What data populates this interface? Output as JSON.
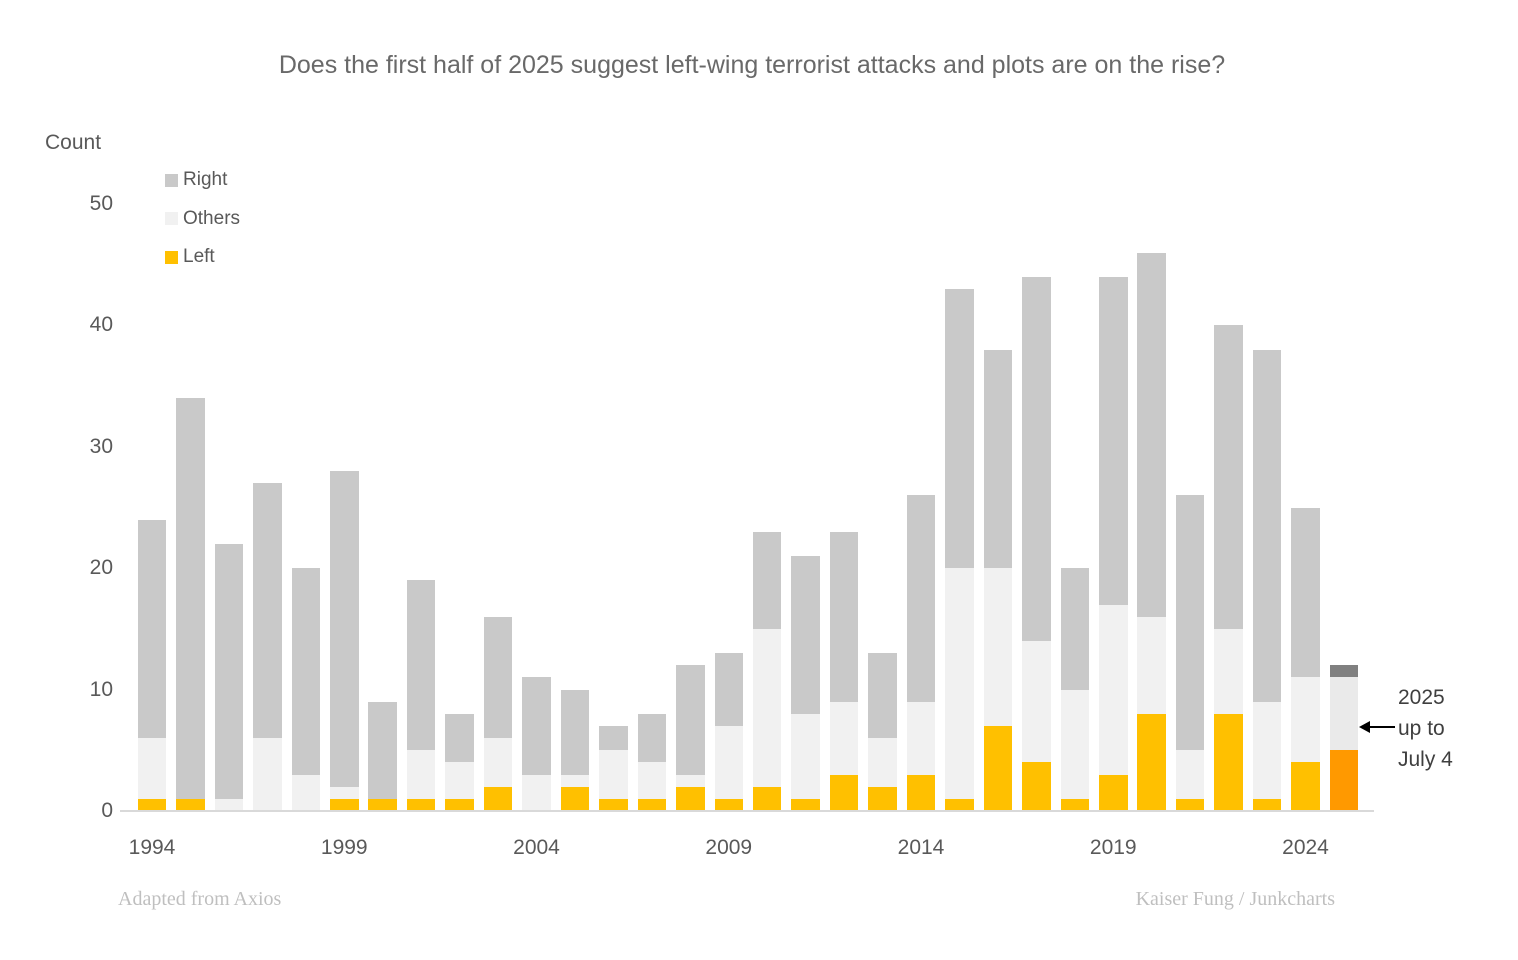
{
  "title": "Does the first half of 2025 suggest left-wing terrorist attacks and plots are on the rise?",
  "footer": {
    "left": "Adapted from Axios",
    "right": "Kaiser Fung / Junkcharts"
  },
  "annotation": {
    "lines": [
      "2025",
      "up to",
      "July 4"
    ],
    "points_to_year": 2025
  },
  "chart_data": {
    "type": "bar",
    "subtype": "stacked",
    "ylabel": "Count",
    "xlabel": "",
    "ylim": [
      0,
      50
    ],
    "yticks": [
      0,
      10,
      20,
      30,
      40,
      50
    ],
    "xticks": [
      1994,
      1999,
      2004,
      2009,
      2014,
      2019,
      2024
    ],
    "grid": false,
    "legend_position": "top-left",
    "legend": [
      {
        "label": "Right",
        "color": "#C9C9C9"
      },
      {
        "label": "Others",
        "color": "#F1F1F1"
      },
      {
        "label": "Left",
        "color": "#FFC000"
      }
    ],
    "x": [
      1994,
      1995,
      1996,
      1997,
      1998,
      1999,
      2000,
      2001,
      2002,
      2003,
      2004,
      2005,
      2006,
      2007,
      2008,
      2009,
      2010,
      2011,
      2012,
      2013,
      2014,
      2015,
      2016,
      2017,
      2018,
      2019,
      2020,
      2021,
      2022,
      2023,
      2024,
      2025
    ],
    "series": [
      {
        "name": "Left",
        "color": "#FFC000",
        "values": [
          1,
          1,
          0,
          0,
          0,
          1,
          1,
          1,
          1,
          2,
          0,
          2,
          1,
          1,
          2,
          1,
          2,
          1,
          3,
          2,
          3,
          1,
          7,
          4,
          1,
          3,
          8,
          1,
          8,
          1,
          4,
          5
        ]
      },
      {
        "name": "Others",
        "color": "#F1F1F1",
        "values": [
          5,
          0,
          1,
          6,
          3,
          1,
          0,
          4,
          3,
          4,
          3,
          1,
          4,
          3,
          1,
          6,
          13,
          7,
          6,
          4,
          6,
          19,
          13,
          10,
          9,
          14,
          8,
          4,
          7,
          8,
          7,
          6
        ]
      },
      {
        "name": "Right",
        "color": "#C9C9C9",
        "values": [
          18,
          33,
          21,
          21,
          17,
          26,
          8,
          14,
          4,
          10,
          8,
          7,
          2,
          4,
          9,
          6,
          8,
          13,
          14,
          7,
          17,
          23,
          18,
          30,
          10,
          27,
          30,
          21,
          25,
          29,
          14,
          1
        ]
      }
    ],
    "totals": [
      24,
      34,
      22,
      27,
      20,
      28,
      9,
      19,
      8,
      16,
      11,
      10,
      7,
      8,
      12,
      13,
      23,
      21,
      23,
      13,
      26,
      43,
      38,
      44,
      20,
      44,
      46,
      26,
      40,
      38,
      25,
      12
    ],
    "special_year_2025": {
      "Left_color": "#FF9900",
      "Others_color": "#EAEAEA",
      "Right_color": "#808080"
    }
  }
}
